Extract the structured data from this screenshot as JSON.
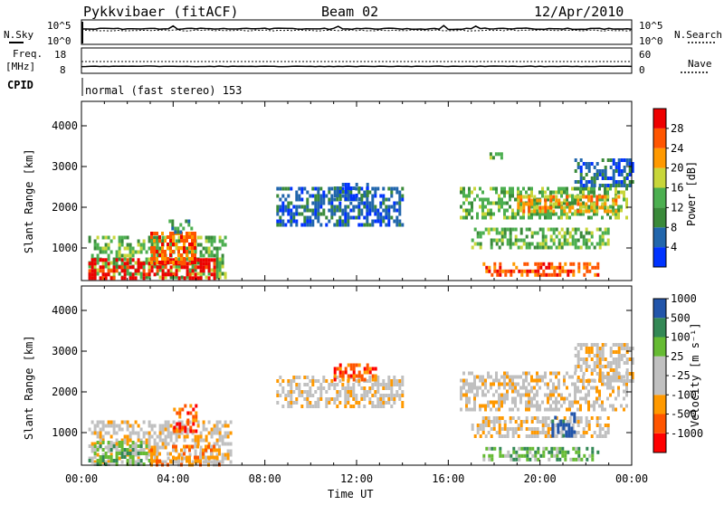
{
  "header": {
    "title": "Pykkvibaer (fitACF)",
    "beam": "Beam 02",
    "date": "12/Apr/2010"
  },
  "nsky_panel": {
    "left_label": "N.Sky",
    "right_label": "N.Search",
    "ticks_left": [
      "10^5",
      "10^0"
    ],
    "ticks_right": [
      "10^5",
      "10^0"
    ]
  },
  "freq_panel": {
    "left_label_1": "Freq.",
    "left_label_2": "[MHz]",
    "right_label": "Nave",
    "ticks_left": [
      "18",
      "8"
    ],
    "ticks_right": [
      "60",
      "0"
    ]
  },
  "cpid": {
    "label": "CPID",
    "text": "normal (fast stereo) 153"
  },
  "colors": {
    "power_scale": [
      "#0033ff",
      "#2166ac",
      "#3a8a3a",
      "#4caf50",
      "#c8d63a",
      "#ff9900",
      "#ff5500",
      "#ee0000"
    ],
    "velocity_scale": [
      "#ff0000",
      "#ff5500",
      "#ff9900",
      "#c0c0c0",
      "#c0c0c0",
      "#66bb33",
      "#338855",
      "#2255aa"
    ]
  },
  "chart_data": [
    {
      "type": "heatmap",
      "name": "power",
      "ylabel": "Slant Range [km]",
      "yticks": [
        1000,
        2000,
        3000,
        4000
      ],
      "ylim": [
        200,
        4600
      ],
      "xlim": [
        0,
        24
      ],
      "colorbar_label": "Power [dB]",
      "colorbar_ticks": [
        "4",
        "8",
        "12",
        "16",
        "20",
        "24",
        "28"
      ],
      "regions": [
        {
          "t0": 0.3,
          "t1": 6.3,
          "r0": 250,
          "r1": 1300,
          "level": 3
        },
        {
          "t0": 0.3,
          "t1": 5.8,
          "r0": 250,
          "r1": 750,
          "level": 7
        },
        {
          "t0": 3.0,
          "t1": 5.0,
          "r0": 600,
          "r1": 1400,
          "level": 6
        },
        {
          "t0": 3.8,
          "t1": 4.8,
          "r0": 1400,
          "r1": 1700,
          "level": 2
        },
        {
          "t0": 8.5,
          "t1": 14.0,
          "r0": 1600,
          "r1": 2500,
          "level": 1
        },
        {
          "t0": 11.0,
          "t1": 12.5,
          "r0": 2200,
          "r1": 2600,
          "level": 1
        },
        {
          "t0": 16.5,
          "t1": 23.8,
          "r0": 1700,
          "r1": 2500,
          "level": 3
        },
        {
          "t0": 19.0,
          "t1": 23.5,
          "r0": 1900,
          "r1": 2300,
          "level": 5
        },
        {
          "t0": 17.0,
          "t1": 23.0,
          "r0": 1000,
          "r1": 1500,
          "level": 3
        },
        {
          "t0": 17.5,
          "t1": 22.5,
          "r0": 350,
          "r1": 650,
          "level": 6
        },
        {
          "t0": 17.8,
          "t1": 18.3,
          "r0": 3200,
          "r1": 3350,
          "level": 3
        },
        {
          "t0": 21.5,
          "t1": 24.0,
          "r0": 2500,
          "r1": 3200,
          "level": 1
        }
      ]
    },
    {
      "type": "heatmap",
      "name": "velocity",
      "ylabel": "Slant Range [km]",
      "yticks": [
        1000,
        2000,
        3000,
        4000
      ],
      "ylim": [
        200,
        4600
      ],
      "xlim": [
        0,
        24
      ],
      "xlabel": "Time UT",
      "xticks": [
        "00:00",
        "04:00",
        "08:00",
        "12:00",
        "16:00",
        "20:00",
        "00:00"
      ],
      "colorbar_label": "Velocity [m s⁻¹]",
      "colorbar_ticks": [
        "-1000",
        "-500",
        "-100",
        "-25",
        "25",
        "100",
        "500",
        "1000"
      ],
      "regions": [
        {
          "t0": 0.3,
          "t1": 6.5,
          "r0": 250,
          "r1": 1300,
          "level": 3
        },
        {
          "t0": 0.3,
          "t1": 3.0,
          "r0": 250,
          "r1": 800,
          "level": 5
        },
        {
          "t0": 3.0,
          "t1": 6.0,
          "r0": 250,
          "r1": 700,
          "level": 2
        },
        {
          "t0": 4.0,
          "t1": 5.0,
          "r0": 900,
          "r1": 1700,
          "level": 1
        },
        {
          "t0": 8.5,
          "t1": 14.0,
          "r0": 1600,
          "r1": 2400,
          "level": 3
        },
        {
          "t0": 11.0,
          "t1": 12.8,
          "r0": 2300,
          "r1": 2700,
          "level": 1
        },
        {
          "t0": 16.5,
          "t1": 23.8,
          "r0": 1600,
          "r1": 2500,
          "level": 3
        },
        {
          "t0": 17.0,
          "t1": 23.0,
          "r0": 900,
          "r1": 1400,
          "level": 3
        },
        {
          "t0": 17.5,
          "t1": 22.5,
          "r0": 350,
          "r1": 650,
          "level": 5
        },
        {
          "t0": 20.5,
          "t1": 21.5,
          "r0": 900,
          "r1": 1500,
          "level": 7
        },
        {
          "t0": 21.5,
          "t1": 24.0,
          "r0": 2300,
          "r1": 3200,
          "level": 3
        }
      ]
    }
  ]
}
